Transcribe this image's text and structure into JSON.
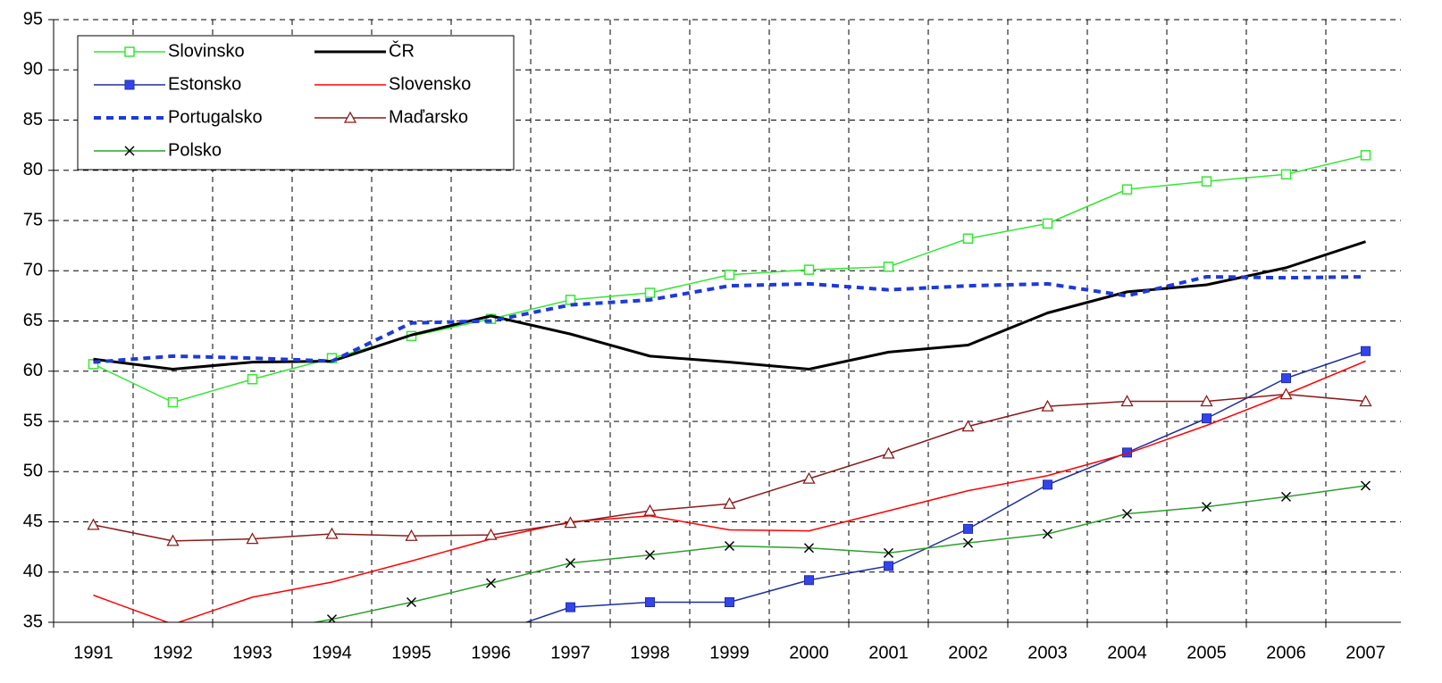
{
  "chart_data": {
    "type": "line",
    "categories": [
      "1991",
      "1992",
      "1993",
      "1994",
      "1995",
      "1996",
      "1997",
      "1998",
      "1999",
      "2000",
      "2001",
      "2002",
      "2003",
      "2004",
      "2005",
      "2006",
      "2007"
    ],
    "ylim": [
      35,
      95
    ],
    "yticks": [
      35,
      40,
      45,
      50,
      55,
      60,
      65,
      70,
      75,
      80,
      85,
      90,
      95
    ],
    "grid": true,
    "legend": "upper left",
    "series": [
      {
        "name": "Slovinsko",
        "color": "#33e833",
        "marker": "square-open",
        "values": [
          60.7,
          56.9,
          59.2,
          61.3,
          63.5,
          65.2,
          67.1,
          67.8,
          69.6,
          70.1,
          70.4,
          73.2,
          74.7,
          78.1,
          78.9,
          79.6,
          81.5
        ]
      },
      {
        "name": "ČR",
        "color": "#000000",
        "width": 3,
        "values": [
          61.2,
          60.2,
          60.9,
          61.0,
          63.6,
          65.5,
          63.7,
          61.5,
          60.9,
          60.2,
          61.9,
          62.6,
          65.8,
          67.9,
          68.6,
          70.3,
          72.9
        ]
      },
      {
        "name": "Estonsko",
        "color": "#1f2f9f",
        "marker": "square-filled",
        "marker_color": "#3344ee",
        "values": [
          null,
          null,
          null,
          null,
          null,
          33.8,
          36.5,
          37.0,
          37.0,
          39.2,
          40.6,
          44.3,
          48.7,
          51.9,
          55.3,
          59.3,
          62.0
        ]
      },
      {
        "name": "Slovensko",
        "color": "#ff0000",
        "values": [
          37.7,
          34.8,
          37.5,
          39.0,
          41.1,
          43.3,
          45.0,
          45.6,
          44.2,
          44.1,
          46.1,
          48.1,
          49.6,
          51.8,
          54.6,
          57.7,
          61.0
        ]
      },
      {
        "name": "Portugalsko",
        "color": "#1e3ad8",
        "width": 4,
        "dashed": true,
        "values": [
          60.9,
          61.5,
          61.3,
          61.0,
          64.8,
          65.0,
          66.6,
          67.1,
          68.5,
          68.7,
          68.1,
          68.5,
          68.7,
          67.5,
          69.4,
          69.3,
          69.4
        ]
      },
      {
        "name": "Maďarsko",
        "color": "#8b1a1a",
        "marker": "triangle-open",
        "values": [
          44.7,
          43.1,
          43.3,
          43.8,
          43.6,
          43.7,
          44.9,
          46.1,
          46.8,
          49.3,
          51.8,
          54.5,
          56.5,
          57.0,
          57.0,
          57.7,
          57.0
        ]
      },
      {
        "name": "Polsko",
        "color": "#2ca02c",
        "marker": "x",
        "marker_color": "#000000",
        "values": [
          null,
          null,
          33.9,
          35.3,
          37.0,
          38.9,
          40.9,
          41.7,
          42.6,
          42.4,
          41.9,
          42.9,
          43.8,
          45.8,
          46.5,
          47.5,
          48.6
        ]
      }
    ]
  }
}
